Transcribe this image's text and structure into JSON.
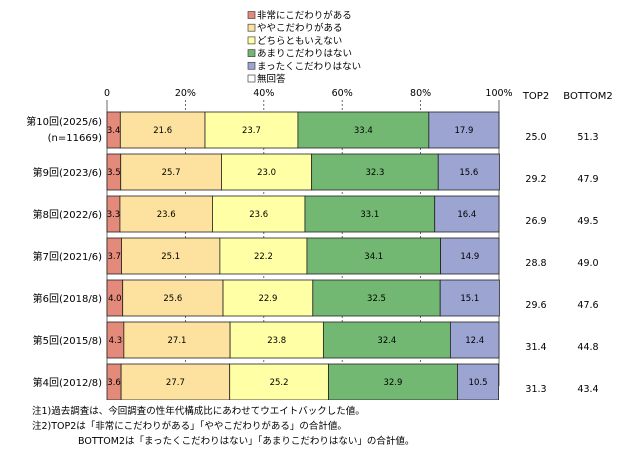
{
  "chart_data": {
    "type": "bar",
    "stacked": true,
    "orientation": "horizontal",
    "percent_stacked": true,
    "legend_position": "top",
    "grid": true,
    "xlim": [
      0,
      100
    ],
    "x_ticks": [
      "0",
      "20%",
      "40%",
      "60%",
      "80%",
      "100%"
    ],
    "categories": [
      [
        "第10回(2025/6)",
        "(n=11669)"
      ],
      [
        "第9回(2023/6)"
      ],
      [
        "第8回(2022/6)"
      ],
      [
        "第7回(2021/6)"
      ],
      [
        "第6回(2018/8)"
      ],
      [
        "第5回(2015/8)"
      ],
      [
        "第4回(2012/8)"
      ]
    ],
    "series": [
      {
        "name": "非常にこだわりがある",
        "color": "#e38a7a",
        "values": [
          3.4,
          3.5,
          3.3,
          3.7,
          4.0,
          4.3,
          3.6
        ]
      },
      {
        "name": "ややこだわりがある",
        "color": "#fce29e",
        "values": [
          21.6,
          25.7,
          23.6,
          25.1,
          25.6,
          27.1,
          27.7
        ]
      },
      {
        "name": "どちらともいえない",
        "color": "#ffffa6",
        "values": [
          23.7,
          23.0,
          23.6,
          22.2,
          22.9,
          23.8,
          25.2
        ]
      },
      {
        "name": "あまりこだわりはない",
        "color": "#72b872",
        "values": [
          33.4,
          32.3,
          33.1,
          34.1,
          32.5,
          32.4,
          32.9
        ]
      },
      {
        "name": "まったくこだわりはない",
        "color": "#9ca4d2",
        "values": [
          17.9,
          15.6,
          16.4,
          14.9,
          15.1,
          12.4,
          10.5
        ]
      },
      {
        "name": "無回答",
        "color": "#ffffff",
        "values": [
          null,
          null,
          null,
          null,
          null,
          null,
          null
        ]
      }
    ],
    "side_columns": [
      {
        "header": "TOP2",
        "values": [
          "25.0",
          "29.2",
          "26.9",
          "28.8",
          "29.6",
          "31.4",
          "31.3"
        ]
      },
      {
        "header": "BOTTOM2",
        "values": [
          "51.3",
          "47.9",
          "49.5",
          "49.0",
          "47.6",
          "44.8",
          "43.4"
        ]
      }
    ]
  },
  "notes": [
    "注1)過去調査は、今回調査の性年代構成比にあわせてウエイトバックした値。",
    "注2)TOP2は「非常にこだわりがある」「ややこだわりがある」の合計値。",
    "BOTTOM2は「まったくこだわりはない」「あまりこだわりはない」の合計値。"
  ]
}
